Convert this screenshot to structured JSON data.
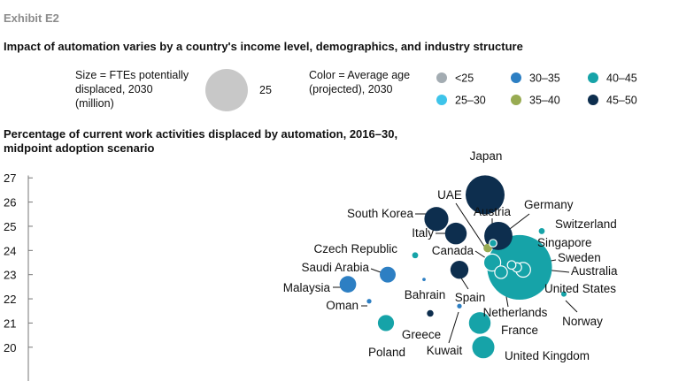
{
  "exhibit_label": "Exhibit E2",
  "title": "Impact of automation varies by a country's income level, demographics, and industry structure",
  "size_legend": {
    "label_lines": [
      "Size = FTEs potentially",
      "displaced, 2030",
      "(million)"
    ],
    "value": 25,
    "value_label": "25",
    "color": "#c8c8c8"
  },
  "color_legend": {
    "label_lines": [
      "Color = Average age",
      "(projected), 2030"
    ],
    "entries": [
      {
        "key": "lt25",
        "label": "<25",
        "color": "#a3acb2"
      },
      {
        "key": "25-30",
        "label": "25–30",
        "color": "#3ec4ea"
      },
      {
        "key": "30-35",
        "label": "30–35",
        "color": "#2d7fc3"
      },
      {
        "key": "35-40",
        "label": "35–40",
        "color": "#98ab52"
      },
      {
        "key": "40-45",
        "label": "40–45",
        "color": "#16a3a8"
      },
      {
        "key": "45-50",
        "label": "45–50",
        "color": "#0d2e4e"
      }
    ]
  },
  "chart_data": {
    "type": "scatter",
    "ylabel_lines": [
      "Percentage of current work activities displaced by automation, 2016–30,",
      "midpoint adoption scenario"
    ],
    "ylim": [
      19.7,
      27.3
    ],
    "yticks": [
      "20",
      "21",
      "22",
      "23",
      "24",
      "25",
      "26",
      "27"
    ],
    "points": [
      {
        "name": "Japan",
        "y": 26.3,
        "size": 21,
        "age": "45-50"
      },
      {
        "name": "South Korea",
        "y": 25.3,
        "size": 8,
        "age": "45-50"
      },
      {
        "name": "Italy",
        "y": 24.7,
        "size": 6.5,
        "age": "45-50"
      },
      {
        "name": "Germany",
        "y": 24.6,
        "size": 11,
        "age": "45-50"
      },
      {
        "name": "Switzerland",
        "y": 24.8,
        "size": 0.5,
        "age": "40-45"
      },
      {
        "name": "Austria",
        "y": 24.3,
        "size": 0.8,
        "age": "40-45"
      },
      {
        "name": "UAE",
        "y": 24.1,
        "size": 1,
        "age": "35-40"
      },
      {
        "name": "Czech Republic",
        "y": 23.8,
        "size": 0.5,
        "age": "40-45"
      },
      {
        "name": "Canada",
        "y": 23.5,
        "size": 4,
        "age": "40-45"
      },
      {
        "name": "United States",
        "y": 23.3,
        "size": 58,
        "age": "40-45"
      },
      {
        "name": "Singapore",
        "y": 23.4,
        "size": 1,
        "age": "40-45"
      },
      {
        "name": "Sweden",
        "y": 23.3,
        "size": 1.2,
        "age": "40-45"
      },
      {
        "name": "Australia",
        "y": 23.2,
        "size": 3,
        "age": "40-45"
      },
      {
        "name": "Netherlands",
        "y": 23.1,
        "size": 2.2,
        "age": "40-45"
      },
      {
        "name": "Saudi Arabia",
        "y": 23.0,
        "size": 3.5,
        "age": "30-35"
      },
      {
        "name": "Spain",
        "y": 23.2,
        "size": 4.5,
        "age": "45-50"
      },
      {
        "name": "Bahrain",
        "y": 22.8,
        "size": 0.15,
        "age": "30-35"
      },
      {
        "name": "Malaysia",
        "y": 22.6,
        "size": 3.8,
        "age": "30-35"
      },
      {
        "name": "Norway",
        "y": 22.2,
        "size": 0.4,
        "age": "40-45"
      },
      {
        "name": "Oman",
        "y": 21.9,
        "size": 0.3,
        "age": "30-35"
      },
      {
        "name": "Greece",
        "y": 21.4,
        "size": 0.6,
        "age": "45-50"
      },
      {
        "name": "Kuwait",
        "y": 21.7,
        "size": 0.3,
        "age": "30-35"
      },
      {
        "name": "Poland",
        "y": 21.0,
        "size": 3.6,
        "age": "40-45"
      },
      {
        "name": "France",
        "y": 21.0,
        "size": 6.5,
        "age": "40-45"
      },
      {
        "name": "United Kingdom",
        "y": 20.0,
        "size": 6.8,
        "age": "40-45"
      }
    ]
  }
}
